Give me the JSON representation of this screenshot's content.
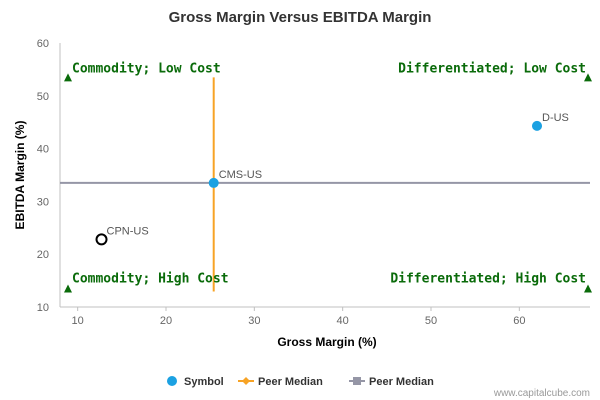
{
  "chart_data": {
    "type": "scatter",
    "title": "Gross Margin Versus EBITDA Margin",
    "xlabel": "Gross Margin (%)",
    "ylabel": "EBITDA Margin (%)",
    "xlim": [
      8,
      68
    ],
    "ylim": [
      10,
      60
    ],
    "x_ticks": [
      10,
      20,
      30,
      40,
      50,
      60
    ],
    "y_ticks": [
      10,
      20,
      30,
      40,
      50,
      60
    ],
    "grid": false,
    "points": [
      {
        "label": "D-US",
        "x": 62,
        "y": 44.3,
        "style": "filled",
        "color": "#1ba1e2"
      },
      {
        "label": "CMS-US",
        "x": 25.4,
        "y": 33.5,
        "style": "filled",
        "color": "#1ba1e2"
      },
      {
        "label": "CPN-US",
        "x": 12.7,
        "y": 22.8,
        "style": "hollow",
        "color": "#000000"
      }
    ],
    "peer_median_x": 25.4,
    "peer_median_y": 33.5,
    "quadrant_labels": {
      "top_left": "Commodity; Low Cost",
      "top_right": "Differentiated; Low Cost",
      "bottom_left": "Commodity; High Cost",
      "bottom_right": "Differentiated; High Cost"
    },
    "quadrant_marker_y": {
      "top": 53.5,
      "bottom": 13.5
    },
    "legend": {
      "position": "bottom-center",
      "items": [
        {
          "name": "Symbol",
          "marker": "circle",
          "color": "#1ba1e2"
        },
        {
          "name": "Peer Median",
          "marker": "diamond-line",
          "color": "#f7a325"
        },
        {
          "name": "Peer Median",
          "marker": "square-line",
          "color": "#9596a6"
        }
      ]
    },
    "colors": {
      "quadrant_text": "#0a6b0a",
      "vertical_median": "#f7a325",
      "horizontal_median": "#9596a6",
      "axis": "#c0c0c0"
    },
    "credit": "www.capitalcube.com"
  }
}
